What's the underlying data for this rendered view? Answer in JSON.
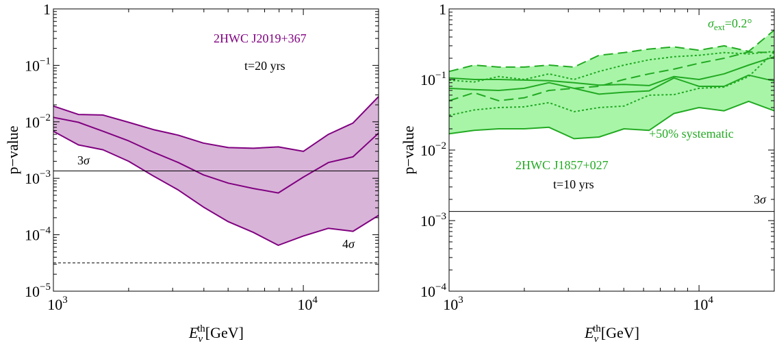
{
  "colors": {
    "purple_line": "#800080",
    "purple_fill": "#d8b4d8",
    "green_line": "#22aa22",
    "green_fill": "#a8f5a8",
    "black": "#000000"
  },
  "chart_data": [
    {
      "type": "area",
      "xscale": "log",
      "yscale": "log",
      "xlim": [
        1000,
        20000
      ],
      "ylim": [
        1e-05,
        1
      ],
      "xlabel": "E_ν^th[GeV]",
      "ylabel": "p−value",
      "x_ticks": [
        {
          "value": 1000,
          "base": "10",
          "exp": "3"
        },
        {
          "value": 10000,
          "base": "10",
          "exp": "4"
        }
      ],
      "y_ticks": [
        {
          "value": 1,
          "base": "1",
          "exp": ""
        },
        {
          "value": 0.1,
          "base": "10",
          "exp": "−1"
        },
        {
          "value": 0.01,
          "base": "10",
          "exp": "−2"
        },
        {
          "value": 0.001,
          "base": "10",
          "exp": "−3"
        },
        {
          "value": 0.0001,
          "base": "10",
          "exp": "−4"
        },
        {
          "value": 1e-05,
          "base": "10",
          "exp": "−5"
        }
      ],
      "source_label": "2HWC J2019+367",
      "time_label": "t=20 yrs",
      "x": [
        1000,
        1260,
        1580,
        2000,
        2510,
        3160,
        3980,
        5010,
        6310,
        7940,
        10000,
        12600,
        15800,
        20000
      ],
      "series": [
        {
          "role": "upper",
          "style": "solid",
          "values": [
            0.019,
            0.0135,
            0.0132,
            0.0098,
            0.0073,
            0.0058,
            0.0042,
            0.0035,
            0.0034,
            0.0036,
            0.003,
            0.006,
            0.0095,
            0.028
          ]
        },
        {
          "role": "central",
          "style": "solid",
          "values": [
            0.012,
            0.0098,
            0.0068,
            0.0046,
            0.0029,
            0.0019,
            0.00115,
            0.00082,
            0.00066,
            0.00055,
            0.00105,
            0.0019,
            0.0024,
            0.0063
          ]
        },
        {
          "role": "lower",
          "style": "solid",
          "values": [
            0.0068,
            0.0039,
            0.0032,
            0.002,
            0.0011,
            0.00062,
            0.00031,
            0.00017,
            0.00011,
            6.5e-05,
            9.5e-05,
            0.00013,
            0.000115,
            0.00022
          ]
        }
      ],
      "hlines": [
        {
          "value": 0.00135,
          "style": "solid",
          "label": "3σ",
          "label_base": "3",
          "label_sym": "σ"
        },
        {
          "value": 3.17e-05,
          "style": "dashed",
          "label": "4σ",
          "label_base": "4",
          "label_sym": "σ"
        }
      ]
    },
    {
      "type": "area",
      "xscale": "log",
      "yscale": "log",
      "xlim": [
        1000,
        20000
      ],
      "ylim": [
        0.0001,
        1
      ],
      "xlabel": "E_ν^th[GeV]",
      "ylabel": "p−value",
      "x_ticks": [
        {
          "value": 1000,
          "base": "10",
          "exp": "3"
        },
        {
          "value": 10000,
          "base": "10",
          "exp": "4"
        }
      ],
      "y_ticks": [
        {
          "value": 1,
          "base": "1",
          "exp": ""
        },
        {
          "value": 0.1,
          "base": "10",
          "exp": "−1"
        },
        {
          "value": 0.01,
          "base": "10",
          "exp": "−2"
        },
        {
          "value": 0.001,
          "base": "10",
          "exp": "−3"
        },
        {
          "value": 0.0001,
          "base": "10",
          "exp": "−4"
        }
      ],
      "source_label": "2HWC J1857+027",
      "time_label": "t=10 yrs",
      "ext_label": "σ_ext=0.2°",
      "ext_label_sym": "σ",
      "ext_label_sub": "ext",
      "ext_label_rest": "=0.2°",
      "syst_label": "+50% systematic",
      "x": [
        1000,
        1260,
        1580,
        2000,
        2510,
        3160,
        3980,
        5010,
        6310,
        7940,
        10000,
        12600,
        15800,
        20000
      ],
      "series": [
        {
          "role": "upper-solid",
          "style": "solid",
          "values": [
            0.105,
            0.1,
            0.1,
            0.098,
            0.096,
            0.09,
            0.083,
            0.085,
            0.082,
            0.11,
            0.1,
            0.12,
            0.16,
            0.21
          ]
        },
        {
          "role": "central-solid",
          "style": "solid",
          "values": [
            0.075,
            0.072,
            0.07,
            0.075,
            0.09,
            0.075,
            0.062,
            0.066,
            0.069,
            0.105,
            0.08,
            0.08,
            0.115,
            0.095
          ]
        },
        {
          "role": "lower-solid",
          "style": "solid",
          "values": [
            0.017,
            0.019,
            0.02,
            0.02,
            0.021,
            0.0145,
            0.0153,
            0.02,
            0.019,
            0.033,
            0.04,
            0.036,
            0.049,
            0.036
          ]
        },
        {
          "role": "upper-dashed",
          "style": "dashed",
          "values": [
            0.13,
            0.16,
            0.15,
            0.15,
            0.16,
            0.15,
            0.22,
            0.24,
            0.27,
            0.29,
            0.26,
            0.3,
            0.25,
            0.5
          ]
        },
        {
          "role": "middle-dashed",
          "style": "dashed",
          "values": [
            0.05,
            0.065,
            0.05,
            0.055,
            0.07,
            0.075,
            0.08,
            0.1,
            0.12,
            0.14,
            0.17,
            0.2,
            0.245,
            0.24
          ]
        },
        {
          "role": "upper-dotted",
          "style": "dotted",
          "values": [
            0.098,
            0.092,
            0.11,
            0.1,
            0.12,
            0.1,
            0.13,
            0.16,
            0.19,
            0.21,
            0.22,
            0.24,
            0.23,
            0.25
          ]
        },
        {
          "role": "lower-dotted",
          "style": "dotted",
          "values": [
            0.031,
            0.037,
            0.04,
            0.041,
            0.047,
            0.035,
            0.04,
            0.042,
            0.06,
            0.061,
            0.075,
            0.078,
            0.11,
            0.245
          ]
        }
      ],
      "hlines": [
        {
          "value": 0.00135,
          "style": "solid",
          "label": "3σ",
          "label_base": "3",
          "label_sym": "σ"
        }
      ]
    }
  ]
}
